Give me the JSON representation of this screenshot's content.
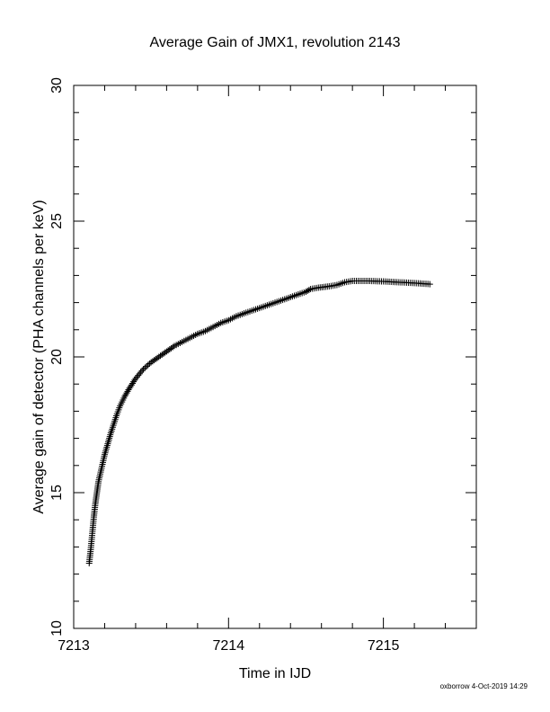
{
  "chart_data": {
    "type": "scatter",
    "title": "Average Gain of JMX1, revolution 2143",
    "xlabel": "Time in IJD",
    "ylabel": "Average gain of detector (PHA channels per keV)",
    "xlim": [
      7213.0,
      7215.6
    ],
    "ylim": [
      10,
      30
    ],
    "x_ticks": [
      7213,
      7214,
      7215
    ],
    "y_ticks": [
      10,
      15,
      20,
      25,
      30
    ],
    "marker": "plus",
    "grid": false,
    "series": [
      {
        "points": [
          [
            7213.1,
            12.4
          ],
          [
            7213.11,
            12.9
          ],
          [
            7213.12,
            13.5
          ],
          [
            7213.13,
            14.1
          ],
          [
            7213.14,
            14.6
          ],
          [
            7213.15,
            15.0
          ],
          [
            7213.16,
            15.4
          ],
          [
            7213.18,
            15.9
          ],
          [
            7213.2,
            16.4
          ],
          [
            7213.22,
            16.8
          ],
          [
            7213.24,
            17.2
          ],
          [
            7213.26,
            17.55
          ],
          [
            7213.28,
            17.9
          ],
          [
            7213.3,
            18.2
          ],
          [
            7213.33,
            18.55
          ],
          [
            7213.36,
            18.85
          ],
          [
            7213.4,
            19.2
          ],
          [
            7213.45,
            19.55
          ],
          [
            7213.5,
            19.8
          ],
          [
            7213.55,
            20.0
          ],
          [
            7213.6,
            20.2
          ],
          [
            7213.65,
            20.4
          ],
          [
            7213.7,
            20.55
          ],
          [
            7213.75,
            20.7
          ],
          [
            7213.8,
            20.85
          ],
          [
            7213.85,
            20.95
          ],
          [
            7213.9,
            21.1
          ],
          [
            7213.95,
            21.25
          ],
          [
            7214.0,
            21.35
          ],
          [
            7214.05,
            21.5
          ],
          [
            7214.1,
            21.6
          ],
          [
            7214.15,
            21.7
          ],
          [
            7214.2,
            21.8
          ],
          [
            7214.25,
            21.9
          ],
          [
            7214.3,
            22.0
          ],
          [
            7214.35,
            22.1
          ],
          [
            7214.4,
            22.2
          ],
          [
            7214.45,
            22.3
          ],
          [
            7214.5,
            22.4
          ],
          [
            7214.53,
            22.5
          ],
          [
            7214.58,
            22.55
          ],
          [
            7214.65,
            22.6
          ],
          [
            7214.7,
            22.65
          ],
          [
            7214.75,
            22.75
          ],
          [
            7214.8,
            22.8
          ],
          [
            7214.9,
            22.8
          ],
          [
            7215.0,
            22.78
          ],
          [
            7215.1,
            22.75
          ],
          [
            7215.2,
            22.72
          ],
          [
            7215.3,
            22.68
          ]
        ]
      }
    ]
  },
  "footer": {
    "stamp": "oxborrow  4-Oct-2019 14:29"
  }
}
